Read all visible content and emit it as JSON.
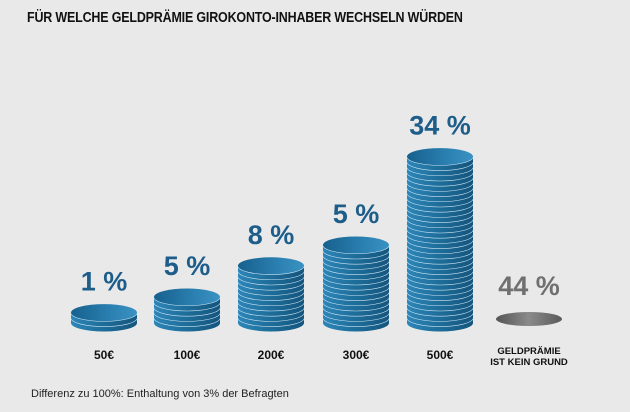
{
  "chart_data": {
    "type": "bar",
    "title": "FÜR WELCHE GELDPRÄMIE GIROKONTO-INHABER WECHSELN WÜRDEN",
    "categories": [
      "50€",
      "100€",
      "200€",
      "300€",
      "500€",
      "GELDPRÄMIE IST KEIN GRUND"
    ],
    "category_lines": [
      [
        "50€"
      ],
      [
        "100€"
      ],
      [
        "200€"
      ],
      [
        "300€"
      ],
      [
        "500€"
      ],
      [
        "GELDPRÄMIE",
        "IST KEIN GRUND"
      ]
    ],
    "values": [
      1,
      5,
      8,
      5,
      34,
      44
    ],
    "labels": [
      "1 %",
      "5 %",
      "8 %",
      "5 %",
      "34 %",
      "44 %"
    ],
    "coin_counts": [
      2,
      5,
      11,
      15,
      32,
      1
    ],
    "unit": "%",
    "xlabel": "",
    "ylabel": "",
    "footnote": "Differenz zu 100%: Enthaltung von 3% der Befragten",
    "colors": {
      "stack": "#1f6f9c",
      "stack_dark": "#14557d",
      "highlight": "#cfe6f5",
      "label": "#1d5d8a",
      "neutral": "#6a6a6a",
      "neutral_label": "#707070"
    }
  }
}
